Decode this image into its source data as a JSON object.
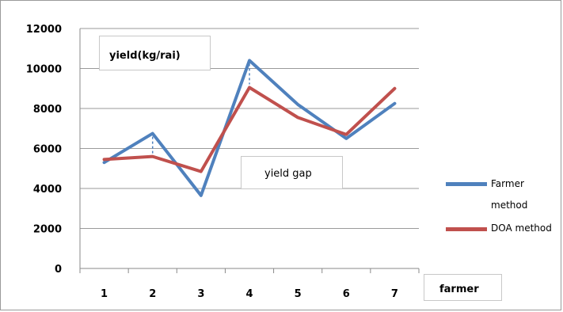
{
  "chart_data": {
    "type": "line",
    "categories": [
      "1",
      "2",
      "3",
      "4",
      "5",
      "6",
      "7"
    ],
    "series": [
      {
        "name": "Farmer method",
        "color": "#4f81bd",
        "values": [
          5300,
          6750,
          3650,
          10400,
          8200,
          6500,
          8250
        ]
      },
      {
        "name": "DOA method",
        "color": "#c0504d",
        "values": [
          5450,
          5600,
          4850,
          9050,
          7550,
          6700,
          9000
        ]
      }
    ],
    "gap_markers": [
      {
        "category": "2",
        "from": 5600,
        "to": 6750
      },
      {
        "category": "4",
        "from": 9050,
        "to": 10400
      }
    ],
    "ylim": [
      0,
      12000
    ],
    "yticks": [
      0,
      2000,
      4000,
      6000,
      8000,
      10000,
      12000
    ],
    "ylabel": "yield(kg/rai)",
    "xlabel": "farmer",
    "annotation": "yield  gap",
    "grid": true,
    "legend_position": "right",
    "legend": [
      {
        "line1": "Farmer",
        "line2": "method"
      },
      {
        "line1": "DOA method"
      }
    ]
  }
}
